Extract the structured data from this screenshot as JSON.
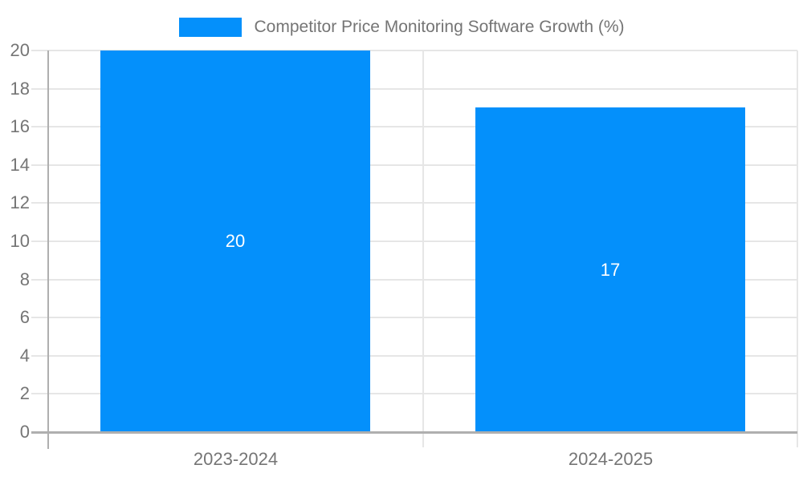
{
  "chart_data": {
    "type": "bar",
    "title": "Competitor Price Monitoring Software Growth (%)",
    "categories": [
      "2023-2024",
      "2024-2025"
    ],
    "values": [
      20,
      17
    ],
    "value_labels": [
      "20",
      "17"
    ],
    "xlabel": "",
    "ylabel": "",
    "ylim": [
      0,
      20
    ],
    "ytick_step": 2,
    "yticks": [
      0,
      2,
      4,
      6,
      8,
      10,
      12,
      14,
      16,
      18,
      20
    ],
    "grid": true,
    "legend_position": "top",
    "value_label_position": "inside-center"
  },
  "colors": {
    "bar": "#0490FB",
    "grid_line": "#E6E6E6",
    "axis_line": "#AFAFAF",
    "tick_text": "#757575",
    "legend_text": "#757575",
    "value_label_text": "#FFFFFF",
    "background": "#FFFFFF"
  }
}
